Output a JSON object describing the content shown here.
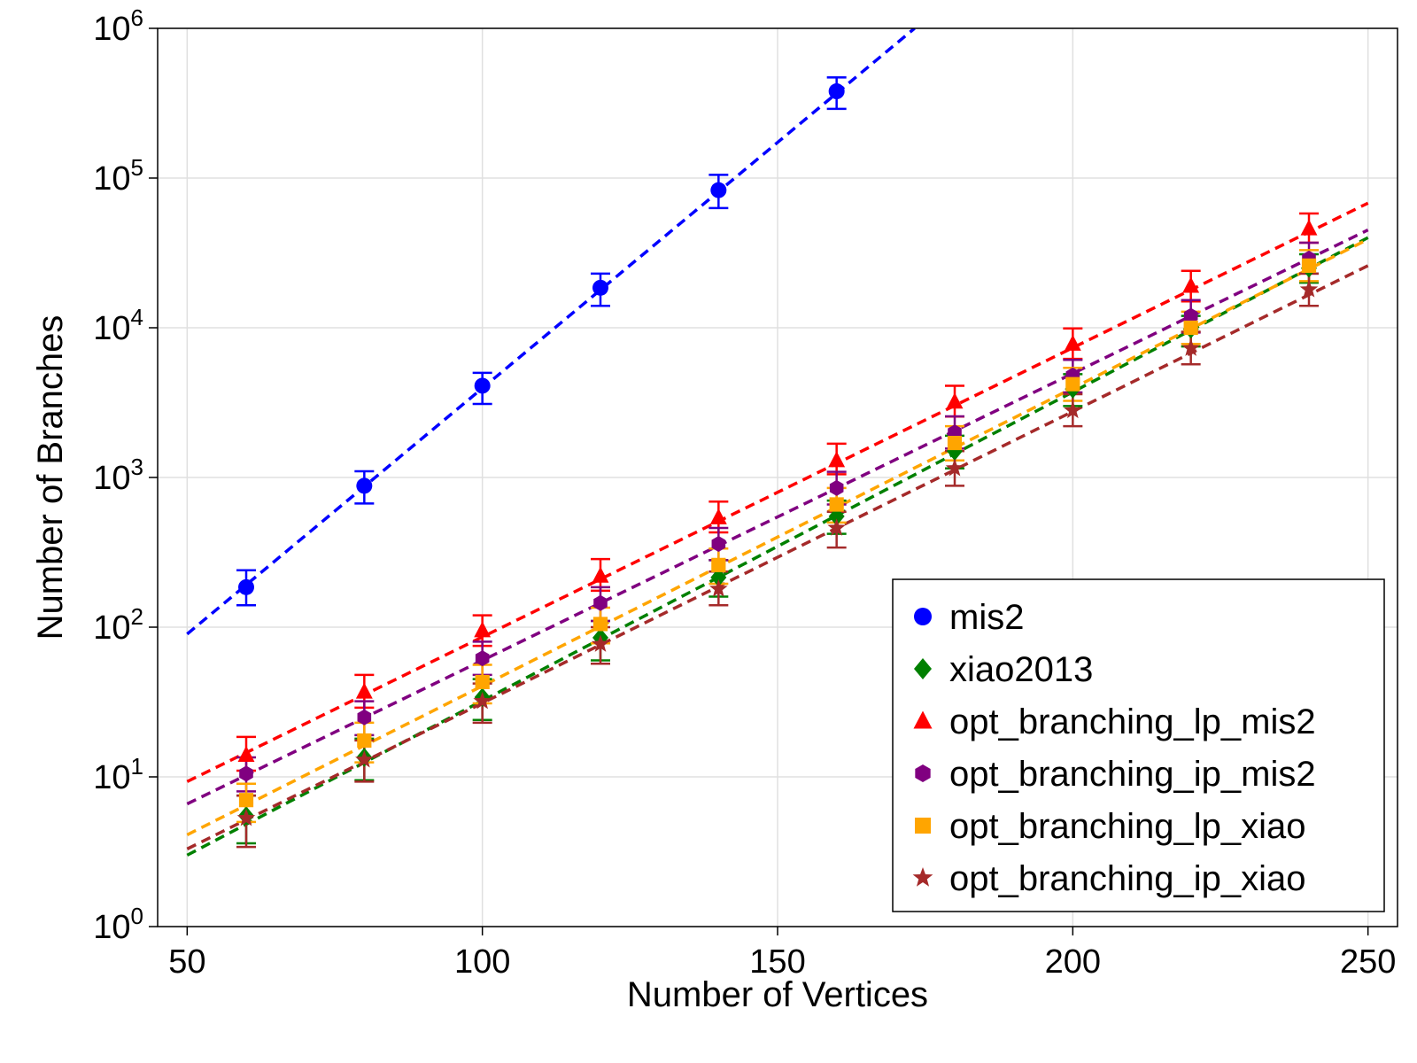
{
  "chart_data": {
    "type": "scatter",
    "xlabel": "Number of Vertices",
    "ylabel": "Number of Branches",
    "xlim": [
      45,
      255
    ],
    "ylim": [
      1,
      1000000
    ],
    "yscale": "log",
    "grid": true,
    "legend_position": "bottom-right",
    "x_ticks": [
      {
        "value": 50,
        "label": "50"
      },
      {
        "value": 100,
        "label": "100"
      },
      {
        "value": 150,
        "label": "150"
      },
      {
        "value": 200,
        "label": "200"
      },
      {
        "value": 250,
        "label": "250"
      }
    ],
    "y_ticks": [
      {
        "value": 1,
        "base": "10",
        "exp": "0"
      },
      {
        "value": 10,
        "base": "10",
        "exp": "1"
      },
      {
        "value": 100,
        "base": "10",
        "exp": "2"
      },
      {
        "value": 1000,
        "base": "10",
        "exp": "3"
      },
      {
        "value": 10000,
        "base": "10",
        "exp": "4"
      },
      {
        "value": 100000,
        "base": "10",
        "exp": "5"
      },
      {
        "value": 1000000,
        "base": "10",
        "exp": "6"
      }
    ],
    "series": [
      {
        "name": "mis2",
        "color": "#0000ff",
        "marker": "circle",
        "x": [
          60,
          80,
          100,
          120,
          140,
          160
        ],
        "y": [
          185,
          880,
          4100,
          18500,
          83000,
          380000
        ],
        "err_low": [
          140,
          670,
          3100,
          14000,
          63000,
          290000
        ],
        "err_high": [
          240,
          1100,
          5000,
          23000,
          105000,
          470000
        ],
        "fit": [
          [
            50,
            90
          ],
          [
            173.2,
            1000000
          ]
        ]
      },
      {
        "name": "xiao2013",
        "color": "#008000",
        "marker": "diamond",
        "x": [
          60,
          80,
          100,
          120,
          140,
          160,
          180,
          200,
          220,
          240
        ],
        "y": [
          5.5,
          13.5,
          34,
          85,
          215,
          550,
          1500,
          3900,
          9800,
          25000
        ],
        "err_low": [
          3.6,
          9.5,
          24,
          60,
          160,
          420,
          1150,
          3000,
          7500,
          20000
        ],
        "err_high": [
          7.5,
          18,
          45,
          110,
          280,
          700,
          1900,
          4900,
          12000,
          31000
        ],
        "fit": [
          [
            50,
            3.0
          ],
          [
            250,
            40000
          ]
        ]
      },
      {
        "name": "opt_branching_lp_mis2",
        "color": "#ff0000",
        "marker": "triangle",
        "x": [
          60,
          80,
          100,
          120,
          140,
          160,
          180,
          200,
          220,
          240
        ],
        "y": [
          14,
          37,
          95,
          220,
          540,
          1300,
          3200,
          7800,
          19000,
          46000
        ],
        "err_low": [
          11,
          29,
          75,
          175,
          430,
          1050,
          2550,
          6200,
          15000,
          37000
        ],
        "err_high": [
          18.5,
          48,
          120,
          285,
          690,
          1680,
          4100,
          9900,
          24000,
          58000
        ],
        "fit": [
          [
            50,
            9.3
          ],
          [
            250,
            68000
          ]
        ]
      },
      {
        "name": "opt_branching_ip_mis2",
        "color": "#800080",
        "marker": "hexagon",
        "x": [
          60,
          80,
          100,
          120,
          140,
          160,
          180,
          200,
          220,
          240
        ],
        "y": [
          10.5,
          25,
          62,
          145,
          360,
          850,
          2000,
          4800,
          12000,
          29000
        ],
        "err_low": [
          8,
          19,
          48,
          110,
          280,
          660,
          1560,
          3700,
          9300,
          23000
        ],
        "err_high": [
          13.5,
          32,
          80,
          185,
          460,
          1090,
          2560,
          6100,
          15300,
          37000
        ],
        "fit": [
          [
            50,
            6.6
          ],
          [
            250,
            45000
          ]
        ]
      },
      {
        "name": "opt_branching_lp_xiao",
        "color": "#ffa500",
        "marker": "square",
        "x": [
          60,
          80,
          100,
          120,
          140,
          160,
          180,
          200,
          220,
          240
        ],
        "y": [
          7,
          17.5,
          43,
          105,
          260,
          660,
          1700,
          4200,
          10000,
          26000
        ],
        "err_low": [
          5,
          12.5,
          31,
          78,
          195,
          500,
          1300,
          3250,
          7800,
          20500
        ],
        "err_high": [
          9,
          23,
          56,
          135,
          335,
          850,
          2200,
          5400,
          12800,
          33000
        ],
        "fit": [
          [
            50,
            4.1
          ],
          [
            250,
            39000
          ]
        ]
      },
      {
        "name": "opt_branching_ip_xiao",
        "color": "#a52a2a",
        "marker": "star",
        "x": [
          60,
          80,
          100,
          120,
          140,
          160,
          180,
          200,
          220,
          240
        ],
        "y": [
          5.3,
          13,
          32,
          77,
          180,
          460,
          1150,
          2800,
          7300,
          18000
        ],
        "err_low": [
          3.4,
          9.3,
          23,
          57,
          140,
          340,
          880,
          2200,
          5700,
          14000
        ],
        "err_high": [
          7.5,
          17.5,
          42,
          100,
          235,
          590,
          1500,
          3600,
          9400,
          23000
        ],
        "fit": [
          [
            50,
            3.3
          ],
          [
            250,
            26000
          ]
        ]
      }
    ]
  }
}
